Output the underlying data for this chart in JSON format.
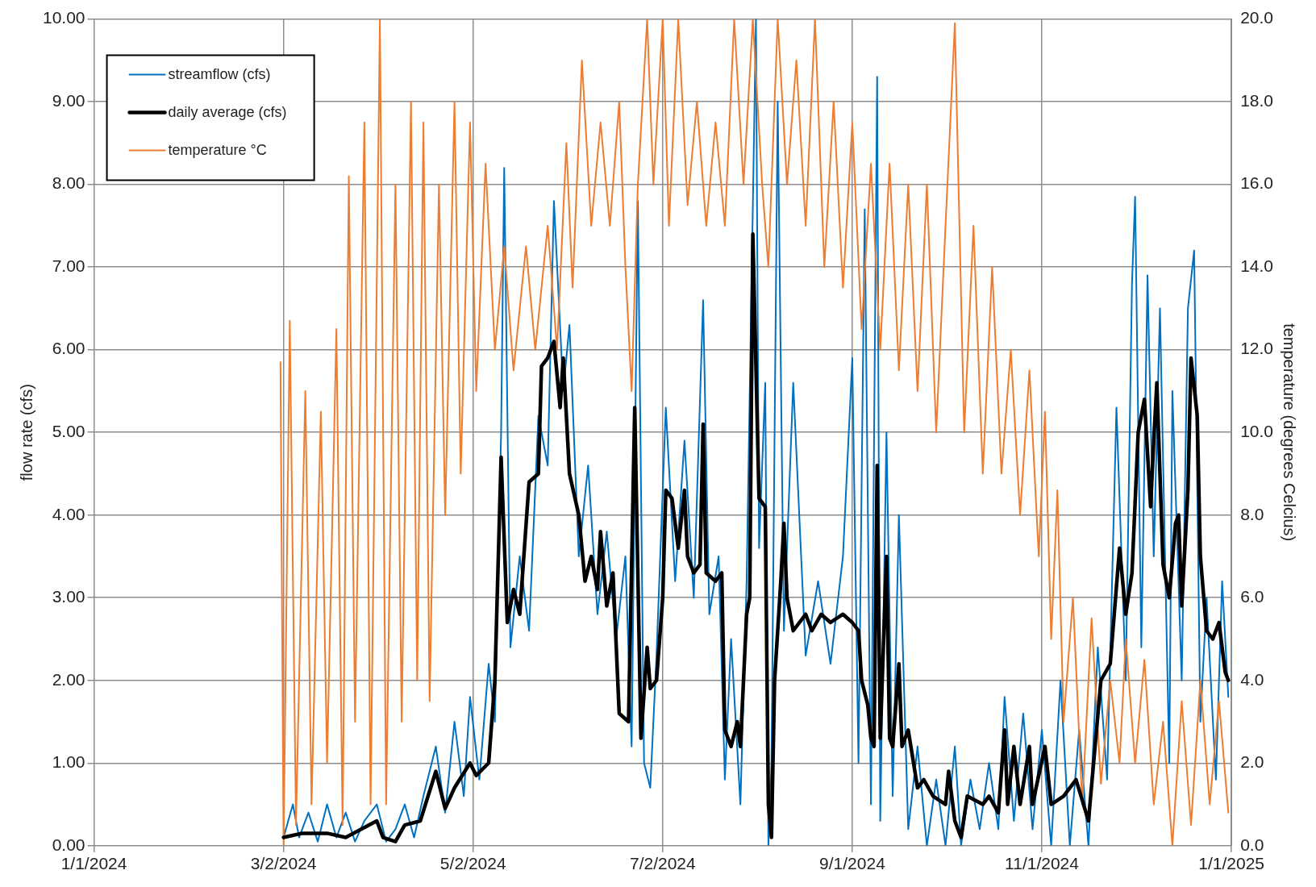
{
  "chart_data": {
    "type": "line",
    "ylabel": "flow rate (cfs)",
    "y2label": "temperature (degrees Celcius)",
    "xlim": [
      "2024-01-01",
      "2025-01-01"
    ],
    "xticks": [
      {
        "value": "2024-01-01",
        "label": "1/1/2024"
      },
      {
        "value": "2024-03-02",
        "label": "3/2/2024"
      },
      {
        "value": "2024-05-02",
        "label": "5/2/2024"
      },
      {
        "value": "2024-07-02",
        "label": "7/2/2024"
      },
      {
        "value": "2024-09-01",
        "label": "9/1/2024"
      },
      {
        "value": "2024-11-01",
        "label": "11/1/2024"
      },
      {
        "value": "2025-01-01",
        "label": "1/1/2025"
      }
    ],
    "ylim": [
      0,
      10
    ],
    "yticks": [
      {
        "value": 0,
        "label": "0.00"
      },
      {
        "value": 1,
        "label": "1.00"
      },
      {
        "value": 2,
        "label": "2.00"
      },
      {
        "value": 3,
        "label": "3.00"
      },
      {
        "value": 4,
        "label": "4.00"
      },
      {
        "value": 5,
        "label": "5.00"
      },
      {
        "value": 6,
        "label": "6.00"
      },
      {
        "value": 7,
        "label": "7.00"
      },
      {
        "value": 8,
        "label": "8.00"
      },
      {
        "value": 9,
        "label": "9.00"
      },
      {
        "value": 10,
        "label": "10.00"
      }
    ],
    "y2lim": [
      0,
      20
    ],
    "y2ticks": [
      {
        "value": 0,
        "label": "0.0"
      },
      {
        "value": 2,
        "label": "2.0"
      },
      {
        "value": 4,
        "label": "4.0"
      },
      {
        "value": 6,
        "label": "6.0"
      },
      {
        "value": 8,
        "label": "8.0"
      },
      {
        "value": 10,
        "label": "10.0"
      },
      {
        "value": 12,
        "label": "12.0"
      },
      {
        "value": 14,
        "label": "14.0"
      },
      {
        "value": 16,
        "label": "16.0"
      },
      {
        "value": 18,
        "label": "18.0"
      },
      {
        "value": 20,
        "label": "20.0"
      }
    ],
    "grid": true,
    "legend": "top left",
    "marker": "none",
    "line_style": "solid",
    "series": [
      {
        "name": "streamflow (cfs)",
        "color": "#0070c0",
        "x": [
          "2024-03-02",
          "2024-03-05",
          "2024-03-07",
          "2024-03-10",
          "2024-03-13",
          "2024-03-16",
          "2024-03-19",
          "2024-03-22",
          "2024-03-25",
          "2024-03-28",
          "2024-04-01",
          "2024-04-04",
          "2024-04-07",
          "2024-04-10",
          "2024-04-13",
          "2024-04-16",
          "2024-04-20",
          "2024-04-23",
          "2024-04-26",
          "2024-04-29",
          "2024-05-01",
          "2024-05-04",
          "2024-05-07",
          "2024-05-09",
          "2024-05-11",
          "2024-05-12",
          "2024-05-14",
          "2024-05-17",
          "2024-05-20",
          "2024-05-23",
          "2024-05-26",
          "2024-05-28",
          "2024-05-31",
          "2024-06-02",
          "2024-06-05",
          "2024-06-08",
          "2024-06-11",
          "2024-06-14",
          "2024-06-17",
          "2024-06-20",
          "2024-06-22",
          "2024-06-24",
          "2024-06-26",
          "2024-06-28",
          "2024-06-30",
          "2024-07-03",
          "2024-07-06",
          "2024-07-09",
          "2024-07-12",
          "2024-07-15",
          "2024-07-17",
          "2024-07-20",
          "2024-07-22",
          "2024-07-24",
          "2024-07-27",
          "2024-07-29",
          "2024-08-01",
          "2024-08-02",
          "2024-08-04",
          "2024-08-05",
          "2024-08-06",
          "2024-08-08",
          "2024-08-10",
          "2024-08-13",
          "2024-08-17",
          "2024-08-21",
          "2024-08-25",
          "2024-08-29",
          "2024-09-01",
          "2024-09-03",
          "2024-09-05",
          "2024-09-07",
          "2024-09-09",
          "2024-09-10",
          "2024-09-12",
          "2024-09-14",
          "2024-09-16",
          "2024-09-19",
          "2024-09-22",
          "2024-09-25",
          "2024-09-28",
          "2024-10-01",
          "2024-10-04",
          "2024-10-06",
          "2024-10-09",
          "2024-10-12",
          "2024-10-15",
          "2024-10-18",
          "2024-10-20",
          "2024-10-23",
          "2024-10-26",
          "2024-10-29",
          "2024-11-01",
          "2024-11-04",
          "2024-11-07",
          "2024-11-10",
          "2024-11-13",
          "2024-11-16",
          "2024-11-19",
          "2024-11-22",
          "2024-11-25",
          "2024-11-28",
          "2024-11-30",
          "2024-12-01",
          "2024-12-03",
          "2024-12-05",
          "2024-12-07",
          "2024-12-09",
          "2024-12-12",
          "2024-12-13",
          "2024-12-16",
          "2024-12-18",
          "2024-12-20",
          "2024-12-22",
          "2024-12-24",
          "2024-12-27",
          "2024-12-29",
          "2024-12-31"
        ],
        "values": [
          0.1,
          0.5,
          0.1,
          0.4,
          0.05,
          0.5,
          0.1,
          0.4,
          0.05,
          0.3,
          0.5,
          0.05,
          0.2,
          0.5,
          0.1,
          0.6,
          1.2,
          0.4,
          1.5,
          0.6,
          1.8,
          0.8,
          2.2,
          1.5,
          5.0,
          8.2,
          2.4,
          3.5,
          2.6,
          5.2,
          4.6,
          7.8,
          5.5,
          6.3,
          3.5,
          4.6,
          2.8,
          3.8,
          2.5,
          3.5,
          1.2,
          7.8,
          1.0,
          0.7,
          2.3,
          5.3,
          3.2,
          4.9,
          3.0,
          6.6,
          2.8,
          3.5,
          0.8,
          2.5,
          0.5,
          3.2,
          10.0,
          3.6,
          5.6,
          0.0,
          1.0,
          9.0,
          2.6,
          5.6,
          2.3,
          3.2,
          2.2,
          3.5,
          5.9,
          1.0,
          7.7,
          0.5,
          9.3,
          0.3,
          5.0,
          0.6,
          4.0,
          0.2,
          1.2,
          0.0,
          0.8,
          0.0,
          1.2,
          0.0,
          0.8,
          0.2,
          1.0,
          0.2,
          1.8,
          0.3,
          1.6,
          0.2,
          1.4,
          0.0,
          2.0,
          0.0,
          1.4,
          0.0,
          2.4,
          0.8,
          5.3,
          2.0,
          6.8,
          7.85,
          2.4,
          6.9,
          3.5,
          6.5,
          1.0,
          5.5,
          2.0,
          6.5,
          7.2,
          1.5,
          3.0,
          0.8,
          3.2,
          1.8
        ]
      },
      {
        "name": "daily average (cfs)",
        "color": "#000000",
        "x": [
          "2024-03-02",
          "2024-03-08",
          "2024-03-16",
          "2024-03-22",
          "2024-04-01",
          "2024-04-03",
          "2024-04-07",
          "2024-04-10",
          "2024-04-15",
          "2024-04-20",
          "2024-04-23",
          "2024-04-26",
          "2024-05-01",
          "2024-05-03",
          "2024-05-07",
          "2024-05-09",
          "2024-05-11",
          "2024-05-13",
          "2024-05-15",
          "2024-05-17",
          "2024-05-20",
          "2024-05-23",
          "2024-05-24",
          "2024-05-26",
          "2024-05-28",
          "2024-05-30",
          "2024-05-31",
          "2024-06-02",
          "2024-06-05",
          "2024-06-07",
          "2024-06-09",
          "2024-06-11",
          "2024-06-12",
          "2024-06-14",
          "2024-06-16",
          "2024-06-18",
          "2024-06-21",
          "2024-06-23",
          "2024-06-25",
          "2024-06-27",
          "2024-06-28",
          "2024-06-30",
          "2024-07-02",
          "2024-07-03",
          "2024-07-05",
          "2024-07-07",
          "2024-07-09",
          "2024-07-10",
          "2024-07-12",
          "2024-07-14",
          "2024-07-15",
          "2024-07-16",
          "2024-07-19",
          "2024-07-21",
          "2024-07-22",
          "2024-07-24",
          "2024-07-26",
          "2024-07-27",
          "2024-07-29",
          "2024-07-30",
          "2024-07-31",
          "2024-08-02",
          "2024-08-04",
          "2024-08-05",
          "2024-08-06",
          "2024-08-07",
          "2024-08-09",
          "2024-08-10",
          "2024-08-11",
          "2024-08-13",
          "2024-08-17",
          "2024-08-19",
          "2024-08-22",
          "2024-08-25",
          "2024-08-29",
          "2024-09-01",
          "2024-09-03",
          "2024-09-04",
          "2024-09-06",
          "2024-09-07",
          "2024-09-08",
          "2024-09-09",
          "2024-09-10",
          "2024-09-12",
          "2024-09-13",
          "2024-09-14",
          "2024-09-16",
          "2024-09-17",
          "2024-09-19",
          "2024-09-22",
          "2024-09-24",
          "2024-09-27",
          "2024-10-01",
          "2024-10-02",
          "2024-10-04",
          "2024-10-06",
          "2024-10-08",
          "2024-10-13",
          "2024-10-15",
          "2024-10-18",
          "2024-10-20",
          "2024-10-21",
          "2024-10-23",
          "2024-10-25",
          "2024-10-28",
          "2024-10-29",
          "2024-11-02",
          "2024-11-04",
          "2024-11-08",
          "2024-11-12",
          "2024-11-16",
          "2024-11-20",
          "2024-11-23",
          "2024-11-26",
          "2024-11-28",
          "2024-11-30",
          "2024-12-02",
          "2024-12-04",
          "2024-12-06",
          "2024-12-07",
          "2024-12-08",
          "2024-12-10",
          "2024-12-12",
          "2024-12-14",
          "2024-12-15",
          "2024-12-16",
          "2024-12-18",
          "2024-12-19",
          "2024-12-21",
          "2024-12-22",
          "2024-12-24",
          "2024-12-26",
          "2024-12-28",
          "2024-12-30",
          "2024-12-31"
        ],
        "values": [
          0.1,
          0.15,
          0.15,
          0.1,
          0.3,
          0.1,
          0.05,
          0.25,
          0.3,
          0.9,
          0.45,
          0.7,
          1.0,
          0.85,
          1.0,
          2.0,
          4.7,
          2.7,
          3.1,
          2.8,
          4.4,
          4.5,
          5.8,
          5.9,
          6.1,
          5.3,
          5.9,
          4.5,
          4.0,
          3.2,
          3.5,
          3.1,
          3.8,
          2.9,
          3.3,
          1.6,
          1.5,
          5.3,
          1.3,
          2.4,
          1.9,
          2.0,
          3.0,
          4.3,
          4.2,
          3.6,
          4.3,
          3.5,
          3.3,
          3.4,
          5.1,
          3.3,
          3.2,
          3.3,
          1.4,
          1.2,
          1.5,
          1.2,
          2.8,
          3.0,
          7.4,
          4.2,
          4.1,
          0.5,
          0.1,
          2.0,
          3.2,
          3.9,
          3.0,
          2.6,
          2.8,
          2.6,
          2.8,
          2.7,
          2.8,
          2.7,
          2.6,
          2.0,
          1.7,
          1.3,
          1.2,
          4.6,
          1.3,
          3.5,
          1.3,
          1.2,
          2.2,
          1.2,
          1.4,
          0.7,
          0.8,
          0.6,
          0.5,
          0.9,
          0.3,
          0.1,
          0.6,
          0.5,
          0.6,
          0.4,
          1.4,
          0.5,
          1.2,
          0.5,
          1.2,
          0.5,
          1.2,
          0.5,
          0.6,
          0.8,
          0.3,
          2.0,
          2.2,
          3.6,
          2.8,
          3.3,
          5.0,
          5.4,
          4.1,
          4.9,
          5.6,
          3.4,
          3.0,
          3.9,
          4.0,
          2.9,
          4.3,
          5.9,
          5.2,
          3.5,
          2.6,
          2.5,
          2.7,
          2.1,
          2.0
        ]
      },
      {
        "name": "temperature °C",
        "color": "#ed7d31",
        "axis": "y2",
        "x": [
          "2024-03-01",
          "2024-03-02",
          "2024-03-04",
          "2024-03-06",
          "2024-03-09",
          "2024-03-11",
          "2024-03-14",
          "2024-03-16",
          "2024-03-19",
          "2024-03-21",
          "2024-03-23",
          "2024-03-25",
          "2024-03-28",
          "2024-03-30",
          "2024-04-02",
          "2024-04-04",
          "2024-04-07",
          "2024-04-09",
          "2024-04-12",
          "2024-04-14",
          "2024-04-16",
          "2024-04-18",
          "2024-04-21",
          "2024-04-23",
          "2024-04-26",
          "2024-04-28",
          "2024-05-01",
          "2024-05-03",
          "2024-05-06",
          "2024-05-09",
          "2024-05-12",
          "2024-05-15",
          "2024-05-19",
          "2024-05-22",
          "2024-05-26",
          "2024-05-29",
          "2024-06-01",
          "2024-06-03",
          "2024-06-06",
          "2024-06-09",
          "2024-06-12",
          "2024-06-15",
          "2024-06-18",
          "2024-06-20",
          "2024-06-22",
          "2024-06-24",
          "2024-06-27",
          "2024-06-29",
          "2024-07-02",
          "2024-07-04",
          "2024-07-07",
          "2024-07-10",
          "2024-07-13",
          "2024-07-16",
          "2024-07-19",
          "2024-07-22",
          "2024-07-25",
          "2024-07-28",
          "2024-07-31",
          "2024-08-03",
          "2024-08-05",
          "2024-08-08",
          "2024-08-11",
          "2024-08-14",
          "2024-08-17",
          "2024-08-20",
          "2024-08-23",
          "2024-08-26",
          "2024-08-29",
          "2024-09-01",
          "2024-09-04",
          "2024-09-07",
          "2024-09-10",
          "2024-09-13",
          "2024-09-16",
          "2024-09-19",
          "2024-09-22",
          "2024-09-25",
          "2024-09-28",
          "2024-10-01",
          "2024-10-04",
          "2024-10-07",
          "2024-10-10",
          "2024-10-13",
          "2024-10-16",
          "2024-10-19",
          "2024-10-22",
          "2024-10-25",
          "2024-10-28",
          "2024-10-31",
          "2024-11-02",
          "2024-11-04",
          "2024-11-06",
          "2024-11-08",
          "2024-11-11",
          "2024-11-14",
          "2024-11-17",
          "2024-11-20",
          "2024-11-23",
          "2024-11-26",
          "2024-11-28",
          "2024-12-01",
          "2024-12-04",
          "2024-12-07",
          "2024-12-10",
          "2024-12-13",
          "2024-12-16",
          "2024-12-19",
          "2024-12-22",
          "2024-12-25",
          "2024-12-28",
          "2024-12-31"
        ],
        "values": [
          11.7,
          0.0,
          12.7,
          0.5,
          11.0,
          1.0,
          10.5,
          2.0,
          12.5,
          0.5,
          16.2,
          3.0,
          17.5,
          1.0,
          20.0,
          1.0,
          16.0,
          3.0,
          18.0,
          4.0,
          17.5,
          3.5,
          16.0,
          8.0,
          18.0,
          9.0,
          17.5,
          11.0,
          16.5,
          12.0,
          14.5,
          11.5,
          14.5,
          12.0,
          15.0,
          12.0,
          17.0,
          13.5,
          19.0,
          15.0,
          17.5,
          15.0,
          18.0,
          14.0,
          11.0,
          16.0,
          20.0,
          16.0,
          20.0,
          15.0,
          20.0,
          15.5,
          18.0,
          15.0,
          17.5,
          15.0,
          20.0,
          16.0,
          20.0,
          16.0,
          14.0,
          20.0,
          16.0,
          19.0,
          15.0,
          20.0,
          14.0,
          18.0,
          13.5,
          17.5,
          12.5,
          16.5,
          12.0,
          16.5,
          11.5,
          16.0,
          11.0,
          16.0,
          10.0,
          15.0,
          19.9,
          10.0,
          15.0,
          9.0,
          14.0,
          9.0,
          12.0,
          8.0,
          11.5,
          7.0,
          10.5,
          5.0,
          8.6,
          3.0,
          6.0,
          1.0,
          5.5,
          1.5,
          4.0,
          2.0,
          5.0,
          2.0,
          4.5,
          1.0,
          3.0,
          0.0,
          3.5,
          0.5,
          4.0,
          1.0,
          3.5,
          0.8
        ]
      }
    ]
  }
}
